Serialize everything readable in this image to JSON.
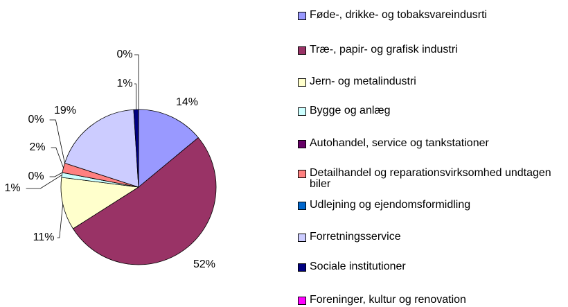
{
  "chart_data": {
    "type": "pie",
    "categories": [
      "Føde-, drikke- og tobaksvareindusrti",
      "Træ-, papir- og grafisk industri",
      "Jern- og metalindustri",
      "Bygge og anlæg",
      "Autohandel, service og tankstationer",
      "Detailhandel og reparationsvirksomhed undtagen biler",
      "Udlejning og ejendomsformidling",
      "Forretningsservice",
      "Sociale institutioner",
      "Foreninger, kultur og renovation"
    ],
    "values": [
      14,
      52,
      11,
      1,
      0,
      2,
      0,
      19,
      1,
      0
    ],
    "value_labels": [
      "14%",
      "52%",
      "11%",
      "1%",
      "0%",
      "2%",
      "0%",
      "19%",
      "1%",
      "0%"
    ],
    "colors": [
      "#9999FF",
      "#993366",
      "#FFFFCC",
      "#CCFFFF",
      "#660066",
      "#FF8080",
      "#0066CC",
      "#CCCCFF",
      "#000080",
      "#FF00FF"
    ],
    "legend": "right"
  }
}
